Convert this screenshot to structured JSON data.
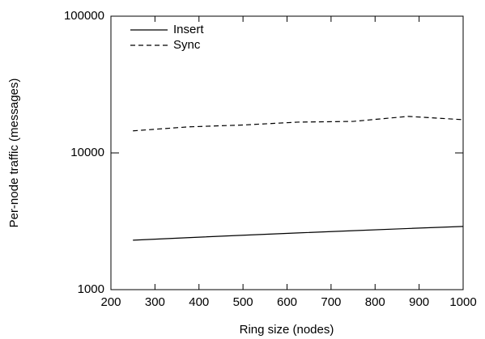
{
  "chart_data": {
    "type": "line",
    "xlabel": "Ring size (nodes)",
    "ylabel": "Per-node traffic (messages)",
    "x": [
      250,
      375,
      500,
      625,
      750,
      875,
      1000
    ],
    "series": [
      {
        "name": "Insert",
        "color": "#000000",
        "dash": "solid",
        "values": [
          2300,
          2400,
          2500,
          2600,
          2700,
          2800,
          2900
        ]
      },
      {
        "name": "Sync",
        "color": "#000000",
        "dash": "dashed",
        "values": [
          14500,
          15500,
          16000,
          16800,
          17000,
          18500,
          17500
        ]
      }
    ],
    "xlim": [
      200,
      1000
    ],
    "xticks": [
      200,
      300,
      400,
      500,
      600,
      700,
      800,
      900,
      1000
    ],
    "ylim": [
      1000,
      100000
    ],
    "yticks": [
      1000,
      10000,
      100000
    ],
    "yscale": "log",
    "legend": "upper-left"
  }
}
